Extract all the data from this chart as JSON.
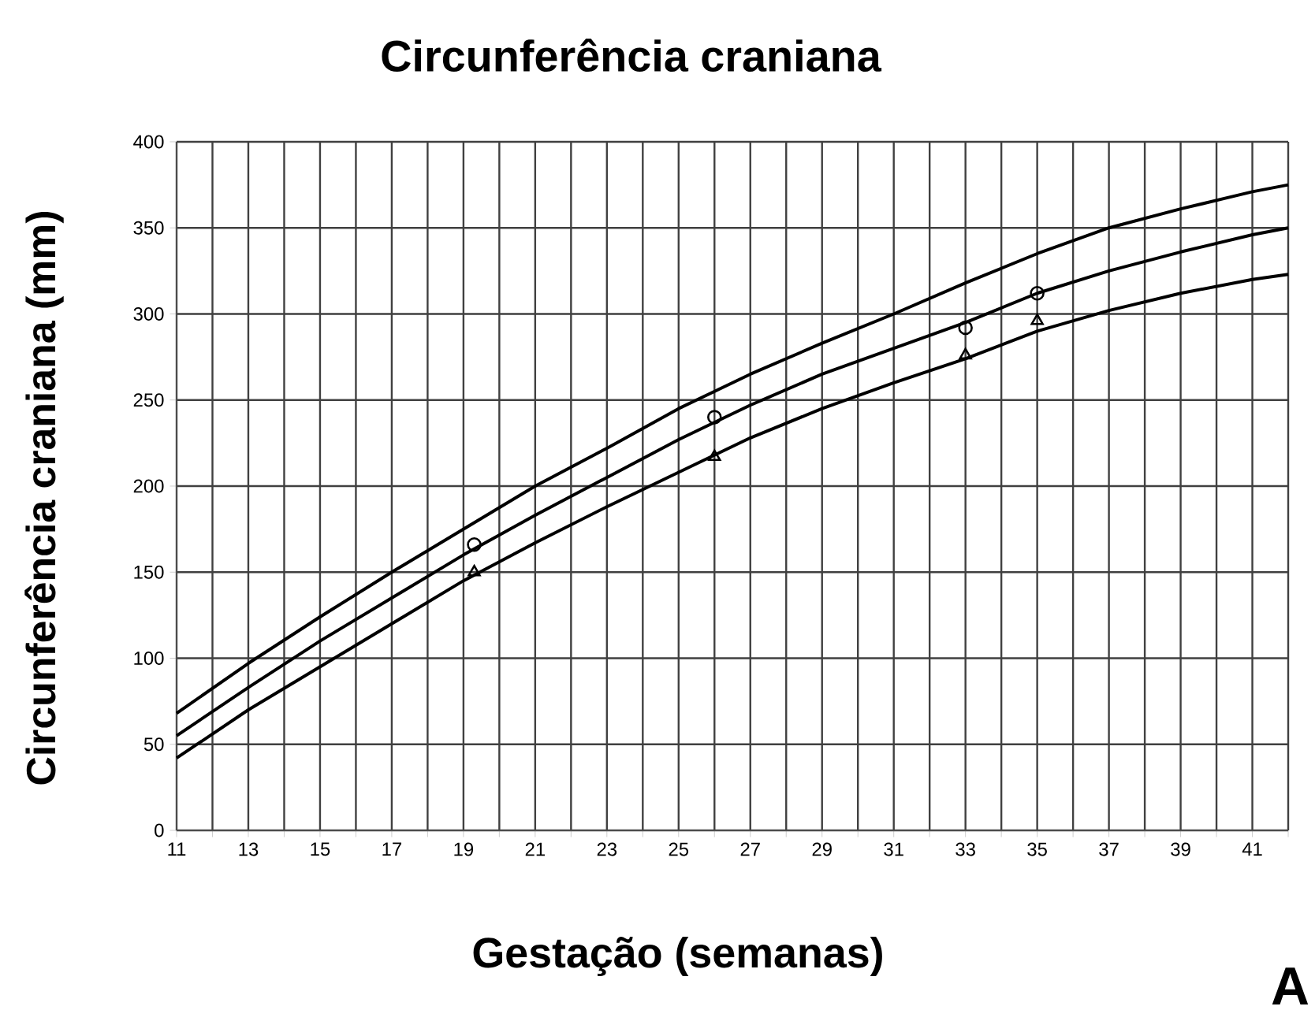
{
  "chart_data": {
    "type": "line",
    "title": "Circunferência craniana",
    "xlabel": "Gestação (semanas)",
    "ylabel": "Circunferência craniana (mm)",
    "annotations": [
      "A"
    ],
    "xlim": [
      11,
      42
    ],
    "ylim": [
      0,
      400
    ],
    "xticks": [
      11,
      {
        "value": 12,
        "label": null
      },
      13,
      {
        "value": 14,
        "label": null
      },
      15,
      {
        "value": 16,
        "label": null
      },
      17,
      {
        "value": 18,
        "label": null
      },
      19,
      {
        "value": 20,
        "label": null
      },
      21,
      {
        "value": 22,
        "label": null
      },
      23,
      {
        "value": 24,
        "label": null
      },
      25,
      {
        "value": 26,
        "label": null
      },
      27,
      {
        "value": 28,
        "label": null
      },
      29,
      {
        "value": 30,
        "label": null
      },
      31,
      {
        "value": 32,
        "label": null
      },
      33,
      {
        "value": 34,
        "label": null
      },
      35,
      {
        "value": 36,
        "label": null
      },
      37,
      {
        "value": 38,
        "label": null
      },
      39,
      {
        "value": 40,
        "label": null
      },
      41,
      {
        "value": 42,
        "label": null
      }
    ],
    "yticks": [
      0,
      50,
      100,
      150,
      200,
      250,
      300,
      350,
      400
    ],
    "grid": true,
    "series": [
      {
        "color": "#000000",
        "x": [
          11,
          13,
          15,
          17,
          19,
          21,
          23,
          25,
          27,
          29,
          31,
          33,
          35,
          37,
          39,
          41,
          42
        ],
        "values": [
          68,
          97,
          124,
          150,
          175,
          200,
          222,
          245,
          265,
          283,
          300,
          318,
          335,
          350,
          361,
          371,
          375
        ]
      },
      {
        "color": "#000000",
        "x": [
          11,
          13,
          15,
          17,
          19,
          21,
          23,
          25,
          27,
          29,
          31,
          33,
          35,
          37,
          39,
          41,
          42
        ],
        "values": [
          55,
          83,
          110,
          135,
          160,
          183,
          205,
          227,
          247,
          265,
          280,
          295,
          312,
          325,
          336,
          346,
          350
        ]
      },
      {
        "color": "#000000",
        "x": [
          11,
          13,
          15,
          17,
          19,
          21,
          23,
          25,
          27,
          29,
          31,
          33,
          35,
          37,
          39,
          41,
          42
        ],
        "values": [
          42,
          70,
          95,
          120,
          145,
          167,
          188,
          208,
          228,
          245,
          260,
          274,
          290,
          302,
          312,
          320,
          323
        ]
      },
      {
        "type": "scatter",
        "color": "#000000",
        "marker": "circle",
        "x": [
          19.3,
          26,
          33,
          35
        ],
        "values": [
          166,
          240,
          292,
          312
        ]
      },
      {
        "type": "scatter",
        "color": "#000000",
        "marker": "triangle",
        "x": [
          19.3,
          26,
          33,
          35
        ],
        "values": [
          150,
          217,
          276,
          296
        ]
      }
    ]
  }
}
